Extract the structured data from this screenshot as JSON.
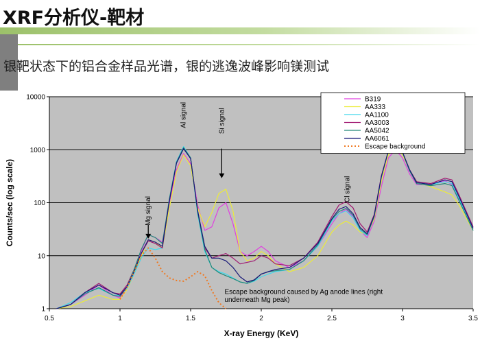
{
  "slide": {
    "title": "XRF分析仪-靶材",
    "subtitle": "银靶状态下的铝合金样品光谱，银的逃逸波峰影响镁测试"
  },
  "colors": {
    "plot_bg": "#c0c0c0",
    "title_accent": "#9cc16a",
    "side_block": "#7f7f7f"
  },
  "chart_data": {
    "type": "line",
    "xlabel": "X-ray Energy (KeV)",
    "ylabel": "Counts/sec (log scale)",
    "xlim": [
      0.5,
      3.5
    ],
    "ylim": [
      1,
      10000
    ],
    "y_scale": "log",
    "grid": "horizontal major lines",
    "legend_position": "top-right",
    "x_ticks": [
      0.5,
      1,
      1.5,
      2,
      2.5,
      3,
      3.5
    ],
    "x_tick_labels": [
      "0.5",
      "1",
      "1.5",
      "2",
      "2.5",
      "3",
      "3.5"
    ],
    "y_ticks": [
      1,
      10,
      100,
      1000,
      10000
    ],
    "y_tick_labels": [
      "1",
      "10",
      "100",
      "1000",
      "10000"
    ],
    "series": [
      {
        "name": "B319",
        "color": "#e040e0",
        "x": [
          0.55,
          0.65,
          0.75,
          0.85,
          0.95,
          1.0,
          1.05,
          1.1,
          1.15,
          1.2,
          1.25,
          1.3,
          1.35,
          1.4,
          1.45,
          1.5,
          1.55,
          1.6,
          1.65,
          1.7,
          1.75,
          1.8,
          1.85,
          1.9,
          1.95,
          2.0,
          2.05,
          2.1,
          2.2,
          2.3,
          2.4,
          2.5,
          2.55,
          2.6,
          2.65,
          2.7,
          2.75,
          2.8,
          2.85,
          2.9,
          2.95,
          3.0,
          3.05,
          3.1,
          3.2,
          3.3,
          3.35,
          3.4,
          3.5
        ],
        "y": [
          1,
          1.2,
          1.8,
          2.8,
          1.8,
          1.6,
          2.5,
          5,
          12,
          25,
          22,
          18,
          100,
          420,
          850,
          550,
          90,
          30,
          35,
          80,
          100,
          40,
          12,
          10,
          12,
          15,
          12,
          8,
          6,
          8,
          15,
          40,
          62,
          75,
          55,
          30,
          22,
          45,
          200,
          700,
          1000,
          700,
          350,
          220,
          220,
          260,
          220,
          110,
          33
        ]
      },
      {
        "name": "AA333",
        "color": "#ecec38",
        "x": [
          0.55,
          0.65,
          0.75,
          0.85,
          0.95,
          1.0,
          1.05,
          1.1,
          1.15,
          1.2,
          1.25,
          1.3,
          1.35,
          1.4,
          1.45,
          1.5,
          1.55,
          1.6,
          1.65,
          1.7,
          1.75,
          1.8,
          1.85,
          1.9,
          1.95,
          2.0,
          2.05,
          2.1,
          2.2,
          2.3,
          2.4,
          2.5,
          2.55,
          2.6,
          2.65,
          2.7,
          2.75,
          2.8,
          2.85,
          2.9,
          2.95,
          3.0,
          3.05,
          3.1,
          3.2,
          3.3,
          3.35,
          3.4,
          3.5
        ],
        "y": [
          1,
          1.1,
          1.4,
          1.8,
          1.5,
          1.5,
          2.3,
          4.5,
          10,
          20,
          18,
          14,
          80,
          380,
          800,
          500,
          80,
          35,
          65,
          150,
          180,
          70,
          12,
          8,
          9,
          12,
          10,
          7,
          5,
          6,
          10,
          28,
          38,
          45,
          38,
          28,
          25,
          50,
          250,
          800,
          1150,
          800,
          420,
          250,
          200,
          160,
          140,
          90,
          30
        ]
      },
      {
        "name": "AA1100",
        "color": "#40d8ec",
        "x": [
          0.55,
          0.65,
          0.75,
          0.85,
          0.95,
          1.0,
          1.05,
          1.1,
          1.15,
          1.2,
          1.25,
          1.3,
          1.35,
          1.4,
          1.45,
          1.5,
          1.55,
          1.6,
          1.65,
          1.7,
          1.75,
          1.8,
          1.85,
          1.9,
          1.95,
          2.0,
          2.05,
          2.1,
          2.2,
          2.3,
          2.4,
          2.5,
          2.55,
          2.6,
          2.65,
          2.7,
          2.75,
          2.8,
          2.85,
          2.9,
          2.95,
          3.0,
          3.05,
          3.1,
          3.2,
          3.3,
          3.35,
          3.4,
          3.5
        ],
        "y": [
          1,
          1.3,
          2,
          2.4,
          1.8,
          1.8,
          2.4,
          4.5,
          9,
          14,
          13,
          14,
          120,
          600,
          1150,
          700,
          60,
          12,
          6,
          5,
          4.5,
          3.8,
          3.2,
          3,
          3.3,
          4,
          4.5,
          5,
          5.5,
          8,
          15,
          45,
          62,
          70,
          52,
          30,
          24,
          55,
          300,
          950,
          1200,
          900,
          400,
          240,
          220,
          250,
          230,
          120,
          30
        ]
      },
      {
        "name": "AA3003",
        "color": "#a01870",
        "x": [
          0.55,
          0.65,
          0.75,
          0.85,
          0.95,
          1.0,
          1.05,
          1.1,
          1.15,
          1.2,
          1.25,
          1.3,
          1.35,
          1.4,
          1.45,
          1.5,
          1.55,
          1.6,
          1.65,
          1.7,
          1.75,
          1.8,
          1.85,
          1.9,
          1.95,
          2.0,
          2.05,
          2.1,
          2.2,
          2.3,
          2.4,
          2.5,
          2.55,
          2.6,
          2.65,
          2.7,
          2.75,
          2.8,
          2.85,
          2.9,
          2.95,
          3.0,
          3.05,
          3.1,
          3.2,
          3.3,
          3.35,
          3.4,
          3.5
        ],
        "y": [
          1,
          1.2,
          2,
          3,
          2,
          1.9,
          2.8,
          5.5,
          11,
          19,
          17,
          14,
          110,
          560,
          1050,
          680,
          70,
          14,
          9,
          10,
          11,
          9,
          7,
          7.5,
          8,
          10,
          9,
          7,
          6.5,
          9,
          18,
          55,
          90,
          105,
          80,
          40,
          28,
          60,
          320,
          950,
          1250,
          900,
          420,
          250,
          230,
          290,
          270,
          140,
          35
        ]
      },
      {
        "name": "AA5042",
        "color": "#208878",
        "x": [
          0.55,
          0.65,
          0.75,
          0.85,
          0.95,
          1.0,
          1.05,
          1.1,
          1.15,
          1.2,
          1.25,
          1.3,
          1.35,
          1.4,
          1.45,
          1.5,
          1.55,
          1.6,
          1.65,
          1.7,
          1.75,
          1.8,
          1.85,
          1.9,
          1.95,
          2.0,
          2.05,
          2.1,
          2.2,
          2.3,
          2.4,
          2.5,
          2.55,
          2.6,
          2.65,
          2.7,
          2.75,
          2.8,
          2.85,
          2.9,
          2.95,
          3.0,
          3.05,
          3.1,
          3.2,
          3.3,
          3.35,
          3.4,
          3.5
        ],
        "y": [
          1,
          1.2,
          1.9,
          2.5,
          1.8,
          1.7,
          2.6,
          5.5,
          13,
          25,
          22,
          17,
          120,
          580,
          1100,
          700,
          65,
          13,
          6,
          4.8,
          4.2,
          3.7,
          3.2,
          3,
          3.4,
          4.5,
          5,
          5.2,
          5.5,
          8,
          16,
          48,
          68,
          78,
          58,
          32,
          25,
          55,
          300,
          950,
          1200,
          880,
          400,
          230,
          210,
          230,
          210,
          110,
          30
        ]
      },
      {
        "name": "AA6061",
        "color": "#181878",
        "x": [
          0.55,
          0.65,
          0.75,
          0.85,
          0.95,
          1.0,
          1.05,
          1.1,
          1.15,
          1.2,
          1.25,
          1.3,
          1.35,
          1.4,
          1.45,
          1.5,
          1.55,
          1.6,
          1.65,
          1.7,
          1.75,
          1.8,
          1.85,
          1.9,
          1.95,
          2.0,
          2.05,
          2.1,
          2.2,
          2.3,
          2.4,
          2.5,
          2.55,
          2.6,
          2.65,
          2.7,
          2.75,
          2.8,
          2.85,
          2.9,
          2.95,
          3.0,
          3.05,
          3.1,
          3.2,
          3.3,
          3.35,
          3.4,
          3.5
        ],
        "y": [
          1,
          1.2,
          2,
          2.8,
          2,
          1.8,
          2.6,
          5,
          11,
          20,
          18,
          15,
          110,
          560,
          1050,
          680,
          70,
          15,
          9,
          9,
          8,
          6,
          4,
          3.2,
          3.5,
          4.5,
          5,
          5.5,
          6,
          9,
          17,
          50,
          75,
          85,
          62,
          34,
          26,
          58,
          310,
          950,
          1250,
          900,
          420,
          240,
          220,
          270,
          250,
          130,
          33
        ]
      },
      {
        "name": "Escape background",
        "color": "#f07820",
        "dashed": true,
        "x": [
          1.0,
          1.05,
          1.1,
          1.15,
          1.2,
          1.25,
          1.3,
          1.35,
          1.4,
          1.45,
          1.5,
          1.55,
          1.6,
          1.65,
          1.7,
          1.75
        ],
        "y": [
          1.5,
          2.5,
          5,
          10,
          14,
          9,
          5,
          3.8,
          3.4,
          3.3,
          4,
          5,
          4.2,
          2.2,
          1.3,
          1
        ]
      }
    ],
    "annotations": [
      {
        "text": "Mg signal",
        "x": 1.2,
        "y": 70,
        "rotate": true
      },
      {
        "text": "Al signal",
        "x": 1.45,
        "y": 4500,
        "rotate": true
      },
      {
        "text": "Si signal",
        "x": 1.72,
        "y": 3500,
        "rotate": true
      },
      {
        "text": "Cl signal",
        "x": 2.61,
        "y": 180,
        "rotate": true
      },
      {
        "text": "Escape background caused by Ag anode lines (right",
        "x": 1.74,
        "y": 1.9
      },
      {
        "text": "underneath Mg peak)",
        "x": 1.74,
        "y": 1.35
      }
    ],
    "arrows": [
      {
        "x": 1.2,
        "y_from": 38,
        "y_to": 21
      },
      {
        "x": 1.72,
        "y_from": 1050,
        "y_to": 290
      }
    ]
  }
}
